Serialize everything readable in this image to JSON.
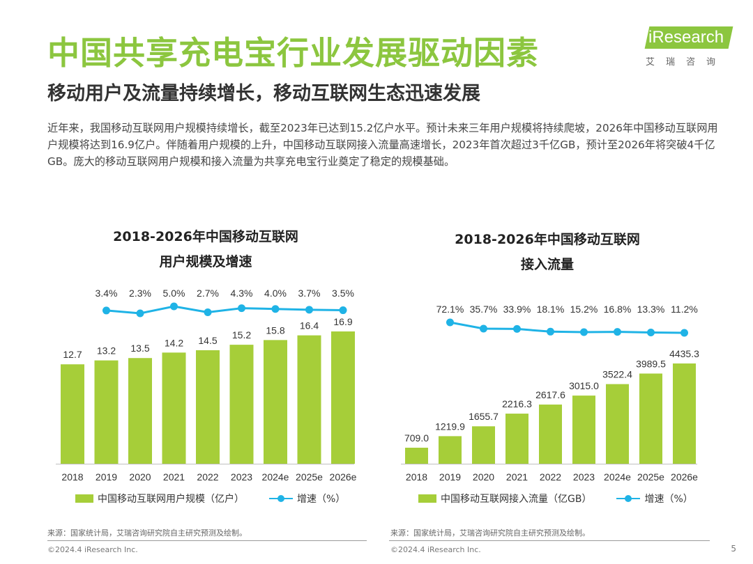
{
  "header": {
    "title": "中国共享充电宝行业发展驱动因素",
    "subtitle": "移动用户及流量持续增长，移动互联网生态迅速发展",
    "logo_text": "iResearch",
    "logo_sub": "艾瑞咨询",
    "brand_color": "#8cc63f"
  },
  "intro": "近年来，我国移动互联网用户规模持续增长，截至2023年已达到15.2亿户水平。预计未来三年用户规模将持续爬坡，2026年中国移动互联网用户规模将达到16.9亿户。伴随着用户规模的上升，中国移动互联网接入流量高速增长，2023年首次超过3千亿GB，预计至2026年将突破4千亿GB。庞大的移动互联网用户规模和接入流量为共享充电宝行业奠定了稳定的规模基础。",
  "chart_data": [
    {
      "type": "bar",
      "title_line1": "2018-2026年中国移动互联网",
      "title_line2": "用户规模及增速",
      "categories": [
        "2018",
        "2019",
        "2020",
        "2021",
        "2022",
        "2023",
        "2024e",
        "2025e",
        "2026e"
      ],
      "series": [
        {
          "name": "中国移动互联网用户规模（亿户）",
          "type": "bar",
          "color": "#a6ce39",
          "values": [
            12.7,
            13.2,
            13.5,
            14.2,
            14.5,
            15.2,
            15.8,
            16.4,
            16.9
          ],
          "labels": [
            "12.7",
            "13.2",
            "13.5",
            "14.2",
            "14.5",
            "15.2",
            "15.8",
            "16.4",
            "16.9"
          ]
        },
        {
          "name": "增速（%）",
          "type": "line",
          "color": "#1fb3e6",
          "values": [
            null,
            3.4,
            2.3,
            5.0,
            2.7,
            4.3,
            4.0,
            3.7,
            3.5
          ],
          "labels": [
            "",
            "3.4%",
            "2.3%",
            "5.0%",
            "2.7%",
            "4.3%",
            "4.0%",
            "3.7%",
            "3.5%"
          ]
        }
      ],
      "legend_position": "bottom",
      "grid": false
    },
    {
      "type": "bar",
      "title_line1": "2018-2026年中国移动互联网",
      "title_line2": "接入流量",
      "categories": [
        "2018",
        "2019",
        "2020",
        "2021",
        "2022",
        "2023",
        "2024e",
        "2025e",
        "2026e"
      ],
      "series": [
        {
          "name": "中国移动互联网接入流量（亿GB）",
          "type": "bar",
          "color": "#a6ce39",
          "values": [
            709.0,
            1219.9,
            1655.7,
            2216.3,
            2617.6,
            3015.0,
            3522.4,
            3989.5,
            4435.3
          ],
          "labels": [
            "709.0",
            "1219.9",
            "1655.7",
            "2216.3",
            "2617.6",
            "3015.0",
            "3522.4",
            "3989.5",
            "4435.3"
          ]
        },
        {
          "name": "增速（%）",
          "type": "line",
          "color": "#1fb3e6",
          "values": [
            null,
            72.1,
            35.7,
            33.9,
            18.1,
            15.2,
            16.8,
            13.3,
            11.2
          ],
          "labels": [
            "",
            "72.1%",
            "35.7%",
            "33.9%",
            "18.1%",
            "15.2%",
            "16.8%",
            "13.3%",
            "11.2%"
          ]
        }
      ],
      "legend_position": "bottom",
      "grid": false
    }
  ],
  "footer": {
    "source": "来源：国家统计局，艾瑞咨询研究院自主研究预测及绘制。",
    "copyright": "©2024.4 iResearch Inc.",
    "page": "5"
  }
}
